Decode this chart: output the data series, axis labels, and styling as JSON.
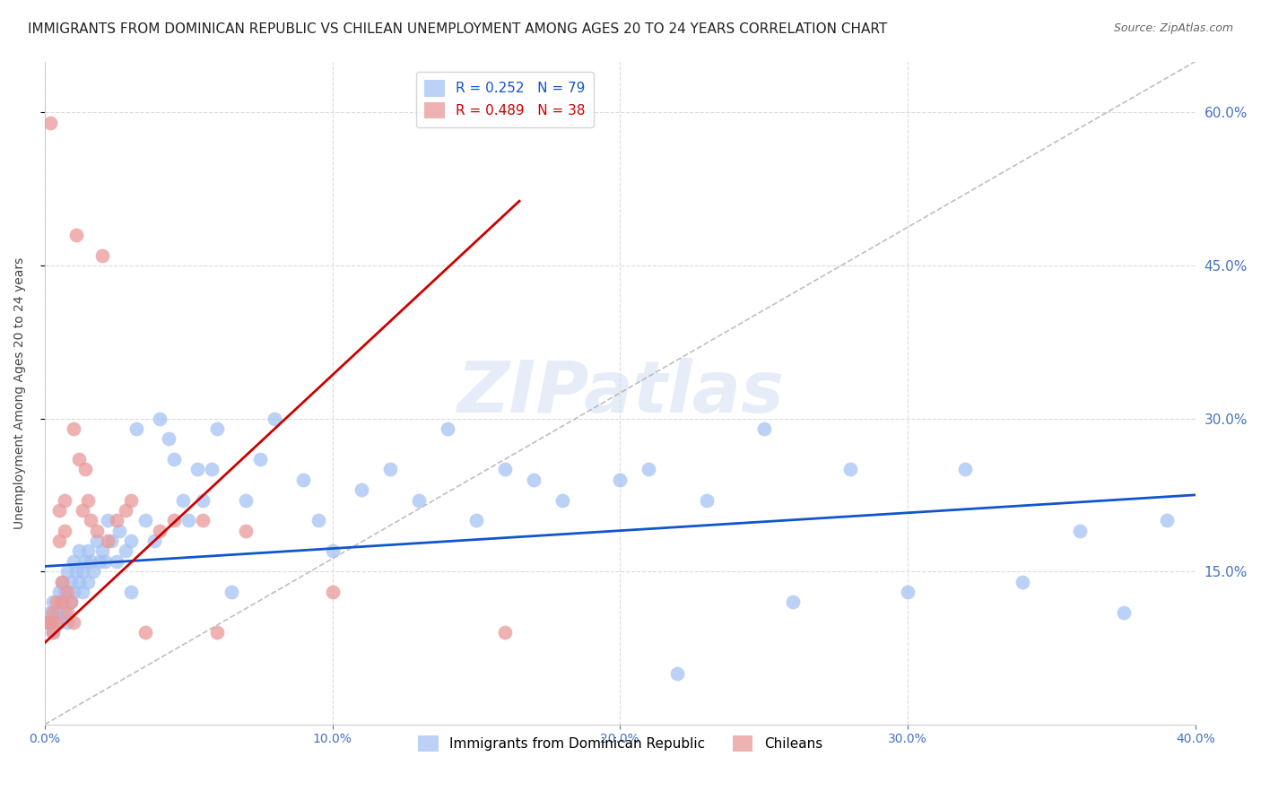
{
  "title": "IMMIGRANTS FROM DOMINICAN REPUBLIC VS CHILEAN UNEMPLOYMENT AMONG AGES 20 TO 24 YEARS CORRELATION CHART",
  "source": "Source: ZipAtlas.com",
  "ylabel": "Unemployment Among Ages 20 to 24 years",
  "series1_label": "Immigrants from Dominican Republic",
  "series1_color": "#a4c2f4",
  "series1_R": 0.252,
  "series1_N": 79,
  "series2_label": "Chileans",
  "series2_color": "#ea9999",
  "series2_R": 0.489,
  "series2_N": 38,
  "series1_line_color": "#1155cc",
  "series2_line_color": "#cc0000",
  "xmin": 0.0,
  "xmax": 0.4,
  "ymin": 0.0,
  "ymax": 0.65,
  "yticks": [
    0.15,
    0.3,
    0.45,
    0.6
  ],
  "xticks": [
    0.0,
    0.1,
    0.2,
    0.3,
    0.4
  ],
  "blue_x": [
    0.001,
    0.002,
    0.003,
    0.003,
    0.004,
    0.004,
    0.005,
    0.005,
    0.006,
    0.006,
    0.007,
    0.007,
    0.008,
    0.008,
    0.009,
    0.009,
    0.01,
    0.01,
    0.011,
    0.012,
    0.012,
    0.013,
    0.013,
    0.014,
    0.015,
    0.015,
    0.016,
    0.017,
    0.018,
    0.019,
    0.02,
    0.021,
    0.022,
    0.023,
    0.025,
    0.026,
    0.028,
    0.03,
    0.032,
    0.035,
    0.038,
    0.04,
    0.043,
    0.045,
    0.048,
    0.05,
    0.053,
    0.055,
    0.058,
    0.06,
    0.065,
    0.07,
    0.075,
    0.08,
    0.09,
    0.095,
    0.1,
    0.11,
    0.12,
    0.13,
    0.14,
    0.15,
    0.16,
    0.17,
    0.18,
    0.2,
    0.21,
    0.22,
    0.23,
    0.25,
    0.26,
    0.28,
    0.3,
    0.32,
    0.34,
    0.36,
    0.375,
    0.39,
    0.03
  ],
  "blue_y": [
    0.1,
    0.11,
    0.09,
    0.12,
    0.1,
    0.11,
    0.13,
    0.1,
    0.12,
    0.14,
    0.11,
    0.13,
    0.1,
    0.15,
    0.12,
    0.14,
    0.16,
    0.13,
    0.15,
    0.14,
    0.17,
    0.15,
    0.13,
    0.16,
    0.14,
    0.17,
    0.16,
    0.15,
    0.18,
    0.16,
    0.17,
    0.16,
    0.2,
    0.18,
    0.16,
    0.19,
    0.17,
    0.18,
    0.29,
    0.2,
    0.18,
    0.3,
    0.28,
    0.26,
    0.22,
    0.2,
    0.25,
    0.22,
    0.25,
    0.29,
    0.13,
    0.22,
    0.26,
    0.3,
    0.24,
    0.2,
    0.17,
    0.23,
    0.25,
    0.22,
    0.29,
    0.2,
    0.25,
    0.24,
    0.22,
    0.24,
    0.25,
    0.05,
    0.22,
    0.29,
    0.12,
    0.25,
    0.13,
    0.25,
    0.14,
    0.19,
    0.11,
    0.2,
    0.13
  ],
  "pink_x": [
    0.001,
    0.002,
    0.002,
    0.003,
    0.003,
    0.004,
    0.004,
    0.005,
    0.005,
    0.006,
    0.006,
    0.007,
    0.007,
    0.008,
    0.008,
    0.009,
    0.01,
    0.01,
    0.011,
    0.012,
    0.013,
    0.014,
    0.015,
    0.016,
    0.018,
    0.02,
    0.022,
    0.025,
    0.028,
    0.03,
    0.035,
    0.04,
    0.045,
    0.055,
    0.06,
    0.07,
    0.1,
    0.16
  ],
  "pink_y": [
    0.1,
    0.59,
    0.1,
    0.11,
    0.09,
    0.12,
    0.1,
    0.18,
    0.21,
    0.12,
    0.14,
    0.19,
    0.22,
    0.13,
    0.11,
    0.12,
    0.1,
    0.29,
    0.48,
    0.26,
    0.21,
    0.25,
    0.22,
    0.2,
    0.19,
    0.46,
    0.18,
    0.2,
    0.21,
    0.22,
    0.09,
    0.19,
    0.2,
    0.2,
    0.09,
    0.19,
    0.13,
    0.09
  ],
  "background_color": "#ffffff",
  "grid_color": "#cccccc",
  "watermark_text": "ZIPatlas",
  "title_fontsize": 11,
  "axis_label_fontsize": 10,
  "tick_fontsize": 10,
  "legend_fontsize": 11,
  "tick_color": "#4472c4"
}
